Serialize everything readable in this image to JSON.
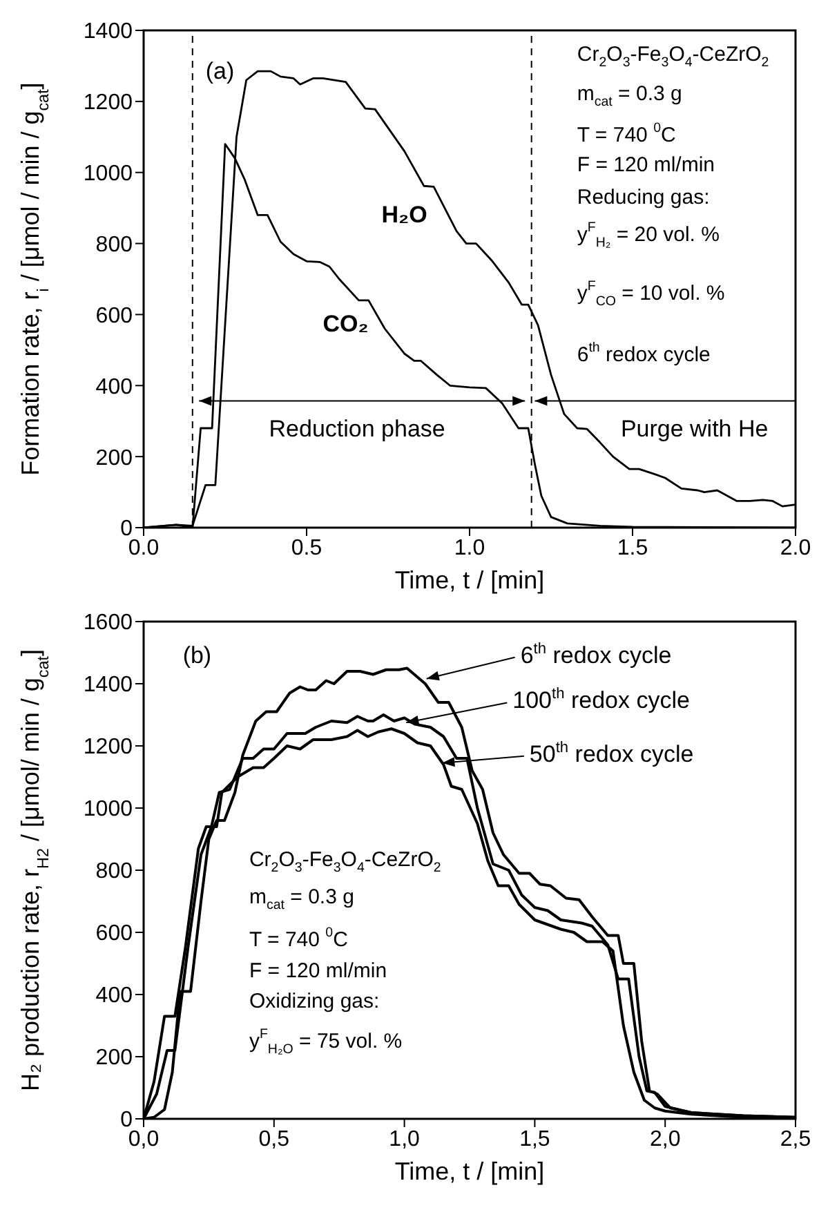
{
  "chart_data": [
    {
      "type": "line",
      "xlabel": "Time, t / [min]",
      "ylabel": "Formation rate, r$_{i}$ / [μmol / min / g$_{cat}$]",
      "xlim": [
        0,
        2
      ],
      "ylim": [
        0,
        1400
      ],
      "xticks": [
        {
          "value": 0,
          "label": "0.0"
        },
        {
          "value": 0.5,
          "label": "0.5"
        },
        {
          "value": 1,
          "label": "1.0"
        },
        {
          "value": 1.5,
          "label": "1.5"
        },
        {
          "value": 2,
          "label": "2.0"
        }
      ],
      "yticks": [
        0,
        200,
        400,
        600,
        800,
        1000,
        1200,
        1400
      ],
      "marker": "none",
      "line_style": "solid",
      "ref_lines": [
        {
          "axis": "x",
          "value": 0.15,
          "line_style": "dashed",
          "color": "#000000"
        },
        {
          "axis": "x",
          "value": 1.19,
          "line_style": "dashed",
          "color": "#000000"
        }
      ],
      "annotations": [
        "(a)",
        "Cr$_{2}$O$_{3}$-Fe$_{3}$O$_{4}$-CeZrO$_{2}$",
        "m$_{cat}$ = 0.3 g",
        "T = 740 $^{0}$C",
        "F = 120 ml/min",
        "Reducing gas:",
        "y$^{F}$$_{H₂}$ = 20 vol. %",
        "y$^{F}$$_{CO}$ = 10 vol. %",
        "6$^{th}$ redox cycle",
        "Reduction phase",
        "Purge with He"
      ],
      "series": [
        {
          "name": "H₂O",
          "color": "#000000",
          "x": [
            0,
            0.1,
            0.15,
            0.19,
            0.22,
            0.285,
            0.315,
            0.35,
            0.39,
            0.42,
            0.46,
            0.48,
            0.52,
            0.55,
            0.62,
            0.68,
            0.71,
            0.8,
            0.86,
            0.89,
            0.96,
            0.99,
            1.02,
            1.07,
            1.12,
            1.16,
            1.18,
            1.21,
            1.25,
            1.29,
            1.33,
            1.36,
            1.4,
            1.44,
            1.49,
            1.52,
            1.57,
            1.6,
            1.65,
            1.7,
            1.72,
            1.76,
            1.82,
            1.86,
            1.9,
            1.93,
            1.96,
            2.0
          ],
          "values": [
            0,
            8,
            5,
            120,
            120,
            1100,
            1260,
            1285,
            1285,
            1270,
            1265,
            1248,
            1265,
            1265,
            1255,
            1180,
            1178,
            1060,
            962,
            960,
            835,
            800,
            800,
            750,
            690,
            628,
            628,
            570,
            430,
            320,
            280,
            278,
            240,
            200,
            165,
            165,
            150,
            140,
            110,
            105,
            100,
            105,
            75,
            75,
            78,
            75,
            60,
            65
          ]
        },
        {
          "name": "CO₂",
          "color": "#000000",
          "x": [
            0,
            0.1,
            0.15,
            0.175,
            0.21,
            0.25,
            0.28,
            0.31,
            0.35,
            0.38,
            0.42,
            0.46,
            0.5,
            0.54,
            0.57,
            0.6,
            0.66,
            0.69,
            0.74,
            0.8,
            0.83,
            0.85,
            0.9,
            0.94,
            1.0,
            1.05,
            1.1,
            1.15,
            1.18,
            1.2,
            1.22,
            1.25,
            1.3,
            1.4,
            1.5,
            2.0
          ],
          "values": [
            0,
            8,
            0,
            280,
            280,
            1080,
            1040,
            980,
            880,
            880,
            805,
            770,
            750,
            748,
            735,
            700,
            640,
            640,
            560,
            490,
            470,
            470,
            430,
            400,
            395,
            393,
            350,
            280,
            280,
            180,
            90,
            30,
            12,
            5,
            2,
            0
          ]
        }
      ]
    },
    {
      "type": "line",
      "xlabel": "Time, t / [min]",
      "ylabel": "H₂ production rate, r$_{H2}$ / [μmol/ min / g$_{cat}$]",
      "xlim": [
        0,
        2.5
      ],
      "ylim": [
        0,
        1600
      ],
      "xticks": [
        {
          "value": 0,
          "label": "0,0"
        },
        {
          "value": 0.5,
          "label": "0,5"
        },
        {
          "value": 1,
          "label": "1,0"
        },
        {
          "value": 1.5,
          "label": "1,5"
        },
        {
          "value": 2,
          "label": "2,0"
        },
        {
          "value": 2.5,
          "label": "2,5"
        }
      ],
      "yticks": [
        0,
        200,
        400,
        600,
        800,
        1000,
        1200,
        1400,
        1600
      ],
      "marker": "none",
      "line_style": "solid",
      "legend": "top right",
      "annotations": [
        "(b)",
        "Cr$_{2}$O$_{3}$-Fe$_{3}$O$_{4}$-CeZrO$_{2}$",
        "m$_{cat}$ = 0.3 g",
        "T = 740 $^{0}$C",
        "F = 120 ml/min",
        "Oxidizing gas:",
        "y$^{F}$$_{H₂O}$ = 75 vol. %"
      ],
      "series": [
        {
          "name": "6$^{th}$ redox cycle",
          "color": "#000000",
          "x": [
            0,
            0.04,
            0.08,
            0.11,
            0.14,
            0.18,
            0.22,
            0.25,
            0.28,
            0.31,
            0.35,
            0.38,
            0.43,
            0.47,
            0.51,
            0.56,
            0.6,
            0.63,
            0.66,
            0.7,
            0.73,
            0.78,
            0.83,
            0.88,
            0.93,
            0.98,
            1.01,
            1.08,
            1.13,
            1.17,
            1.22,
            1.26,
            1.3,
            1.34,
            1.38,
            1.44,
            1.48,
            1.52,
            1.56,
            1.62,
            1.67,
            1.72,
            1.78,
            1.82,
            1.84,
            1.88,
            1.91,
            1.94,
            1.97,
            2.02,
            2.1,
            2.3,
            2.5
          ],
          "values": [
            0,
            5,
            30,
            150,
            410,
            410,
            700,
            900,
            960,
            960,
            1050,
            1170,
            1280,
            1310,
            1310,
            1370,
            1390,
            1380,
            1380,
            1410,
            1400,
            1440,
            1440,
            1430,
            1445,
            1445,
            1450,
            1400,
            1340,
            1340,
            1260,
            1120,
            1060,
            920,
            850,
            790,
            790,
            755,
            750,
            710,
            705,
            650,
            590,
            590,
            500,
            500,
            250,
            90,
            80,
            35,
            20,
            10,
            5
          ]
        },
        {
          "name": "100$^{th}$ redox cycle",
          "color": "#000000",
          "x": [
            0,
            0.05,
            0.09,
            0.12,
            0.17,
            0.22,
            0.26,
            0.29,
            0.33,
            0.38,
            0.42,
            0.46,
            0.5,
            0.55,
            0.62,
            0.66,
            0.72,
            0.78,
            0.82,
            0.86,
            0.88,
            0.92,
            0.96,
            1.0,
            1.04,
            1.1,
            1.15,
            1.2,
            1.24,
            1.28,
            1.34,
            1.4,
            1.45,
            1.5,
            1.55,
            1.6,
            1.68,
            1.72,
            1.78,
            1.82,
            1.86,
            1.9,
            1.93,
            1.96,
            2.0,
            2.1,
            2.3,
            2.5
          ],
          "values": [
            0,
            80,
            220,
            220,
            550,
            850,
            940,
            1050,
            1060,
            1160,
            1160,
            1190,
            1190,
            1240,
            1240,
            1260,
            1280,
            1275,
            1295,
            1280,
            1280,
            1300,
            1280,
            1290,
            1270,
            1260,
            1230,
            1160,
            1160,
            1000,
            820,
            800,
            720,
            680,
            670,
            640,
            630,
            620,
            560,
            450,
            450,
            200,
            90,
            85,
            40,
            20,
            10,
            5
          ]
        },
        {
          "name": "50$^{th}$ redox cycle",
          "color": "#000000",
          "x": [
            0,
            0.04,
            0.08,
            0.12,
            0.16,
            0.21,
            0.24,
            0.28,
            0.3,
            0.36,
            0.42,
            0.46,
            0.5,
            0.55,
            0.6,
            0.65,
            0.72,
            0.78,
            0.82,
            0.86,
            0.9,
            0.95,
            1.0,
            1.05,
            1.1,
            1.15,
            1.18,
            1.22,
            1.28,
            1.32,
            1.36,
            1.4,
            1.44,
            1.5,
            1.55,
            1.6,
            1.65,
            1.7,
            1.76,
            1.8,
            1.84,
            1.88,
            1.92,
            1.96,
            2.0,
            2.1,
            2.3,
            2.5
          ],
          "values": [
            0,
            120,
            330,
            330,
            550,
            870,
            940,
            940,
            1050,
            1100,
            1130,
            1130,
            1160,
            1200,
            1190,
            1220,
            1220,
            1230,
            1250,
            1230,
            1245,
            1255,
            1240,
            1210,
            1200,
            1140,
            1070,
            1060,
            950,
            830,
            750,
            750,
            690,
            640,
            625,
            610,
            600,
            570,
            570,
            540,
            300,
            150,
            60,
            35,
            25,
            15,
            5,
            3
          ]
        }
      ]
    }
  ]
}
